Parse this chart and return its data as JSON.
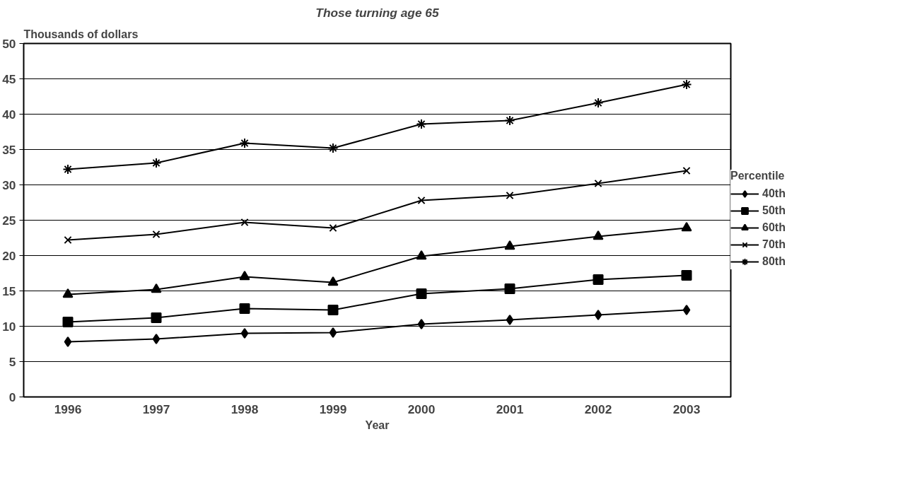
{
  "chart_data": {
    "type": "line",
    "title": "Those turning age 65",
    "ylabel": "Thousands of dollars",
    "xlabel": "Year",
    "categories": [
      "1996",
      "1997",
      "1998",
      "1999",
      "2000",
      "2001",
      "2002",
      "2003"
    ],
    "ylim": [
      0,
      50
    ],
    "yticks": [
      0,
      5,
      10,
      15,
      20,
      25,
      30,
      35,
      40,
      45,
      50
    ],
    "grid": "y",
    "legend": "right",
    "legend_title": "Percentile",
    "series": [
      {
        "name": "40th",
        "color": "#000000",
        "marker": "diamond",
        "values": [
          7.8,
          8.2,
          9.0,
          9.1,
          10.3,
          10.9,
          11.6,
          12.3
        ]
      },
      {
        "name": "50th",
        "color": "#000000",
        "marker": "square",
        "values": [
          10.6,
          11.2,
          12.5,
          12.3,
          14.6,
          15.3,
          16.6,
          17.2
        ]
      },
      {
        "name": "60th",
        "color": "#000000",
        "marker": "triangle",
        "values": [
          14.5,
          15.2,
          17.0,
          16.2,
          19.9,
          21.3,
          22.7,
          23.9
        ]
      },
      {
        "name": "70th",
        "color": "#000000",
        "marker": "cross",
        "values": [
          22.2,
          23.0,
          24.7,
          23.9,
          27.8,
          28.5,
          30.2,
          32.0
        ]
      },
      {
        "name": "80th",
        "color": "#000000",
        "marker": "cross",
        "values": [
          32.2,
          33.1,
          35.9,
          35.2,
          38.6,
          39.1,
          41.6,
          44.2
        ]
      }
    ]
  }
}
